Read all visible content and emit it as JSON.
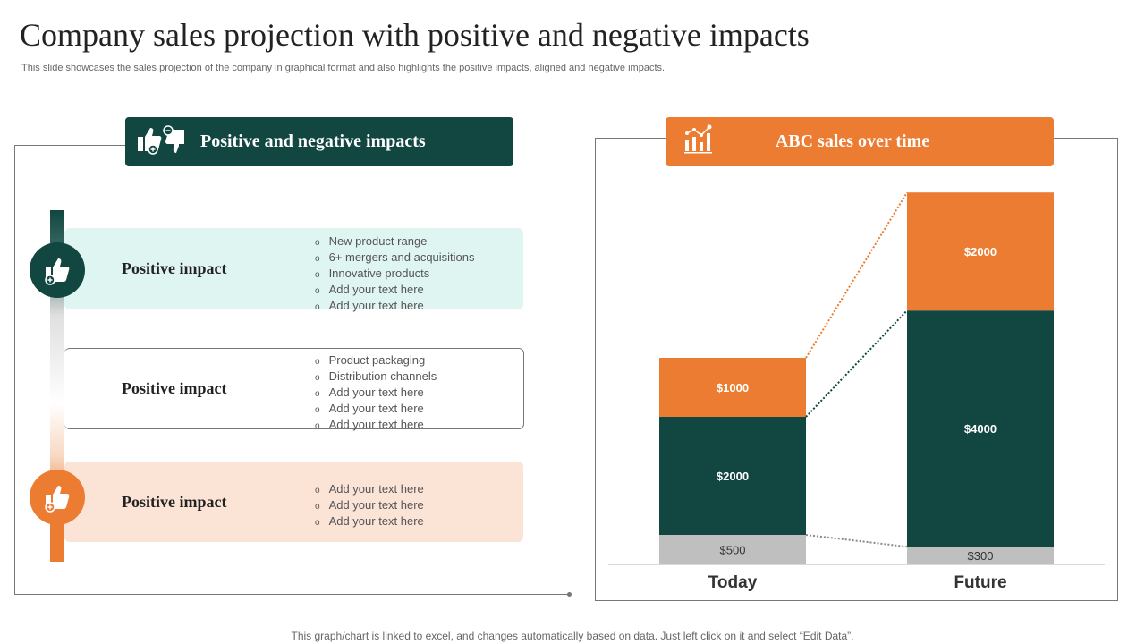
{
  "title": "Company sales projection with positive and negative impacts",
  "subtitle": "This slide showcases the sales projection of the company in graphical format and also highlights the positive impacts, aligned and negative impacts.",
  "footer": "This graph/chart is linked to excel,  and changes automatically based on data. Just left click on it and select “Edit Data”.",
  "left_panel": {
    "header": "Positive and negative impacts",
    "header_icon": "thumbs-up-down-icon",
    "rows": [
      {
        "label": "Positive impact",
        "items": [
          "New product range",
          "6+ mergers and acquisitions",
          "Innovative  products",
          "Add your text here",
          "Add your text here"
        ]
      },
      {
        "label": "Positive impact",
        "items": [
          "Product packaging",
          "Distribution channels",
          "Add your text here",
          "Add your text here",
          "Add your text here"
        ]
      },
      {
        "label": "Positive impact",
        "items": [
          "Add your text here",
          "Add your text here",
          "Add your text here"
        ]
      }
    ]
  },
  "right_panel": {
    "header": "ABC sales over time",
    "header_icon": "bar-chart-icon"
  },
  "colors": {
    "green": "#114740",
    "orange": "#ec7c31",
    "gray": "#bfbfbf",
    "teal_light": "#dff5f2",
    "peach": "#fbe3d6"
  },
  "chart_data": {
    "type": "bar",
    "stacked": true,
    "title": "ABC sales over time",
    "categories": [
      "Today",
      "Future"
    ],
    "series": [
      {
        "values": [
          500,
          300
        ],
        "labels": [
          "$500",
          "$300"
        ],
        "color": "#bfbfbf"
      },
      {
        "values": [
          2000,
          4000
        ],
        "labels": [
          "$2000",
          "$4000"
        ],
        "color": "#114740"
      },
      {
        "values": [
          1000,
          2000
        ],
        "labels": [
          "$1000",
          "$2000"
        ],
        "color": "#ec7c31"
      }
    ],
    "grid": false,
    "connector_lines": "dotted"
  }
}
